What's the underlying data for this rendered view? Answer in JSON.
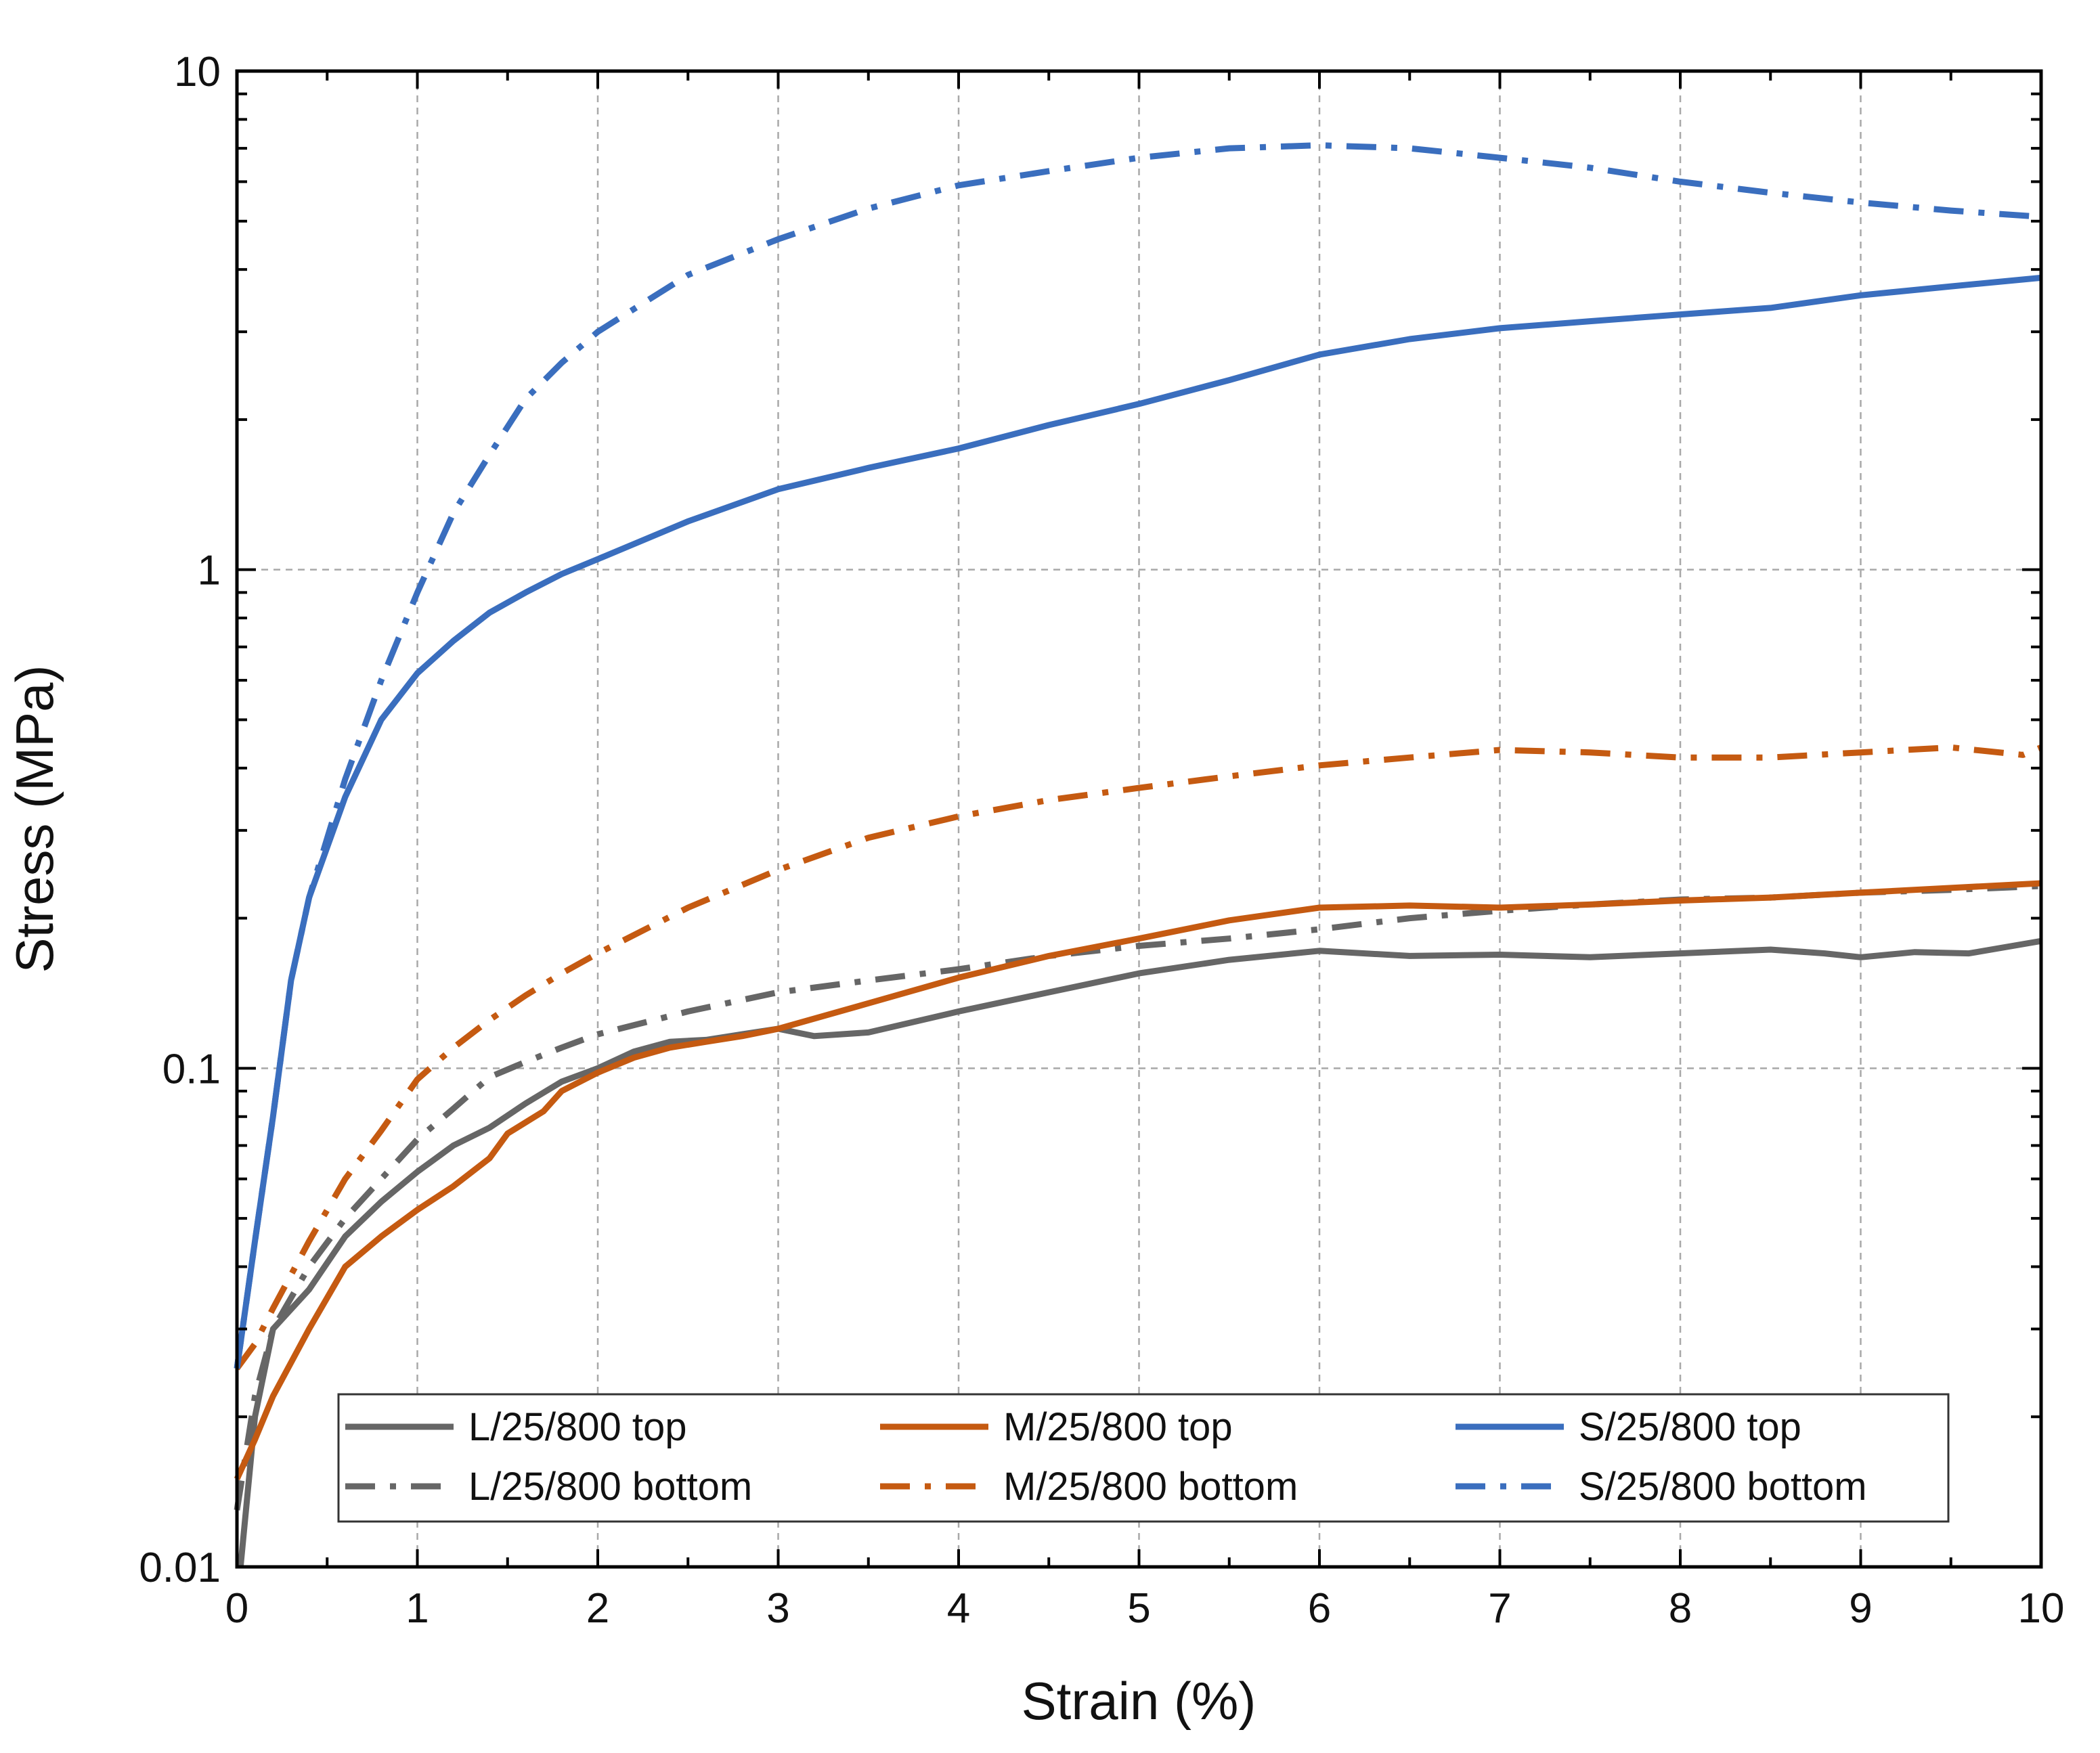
{
  "chart_data": {
    "type": "line",
    "xlabel": "Strain (%)",
    "ylabel": "Stress (MPa)",
    "xlim": [
      0,
      10
    ],
    "ylim": [
      0.01,
      10
    ],
    "y_scale": "log",
    "grid": true,
    "x_ticks": [
      "0",
      "1",
      "2",
      "3",
      "4",
      "5",
      "6",
      "7",
      "8",
      "9",
      "10"
    ],
    "y_ticks": [
      {
        "value": 0.01,
        "label": "0.01"
      },
      {
        "value": 0.1,
        "label": "0.1"
      },
      {
        "value": 1,
        "label": "1"
      },
      {
        "value": 10,
        "label": "10"
      }
    ],
    "legend_position": "bottom",
    "series": [
      {
        "name": "L/25/800 top",
        "color": "#666666",
        "dash": "solid",
        "x": [
          0.02,
          0.1,
          0.2,
          0.4,
          0.6,
          0.8,
          1.0,
          1.2,
          1.4,
          1.6,
          1.8,
          2.0,
          2.2,
          2.4,
          2.6,
          2.8,
          3.0,
          3.2,
          3.5,
          4.0,
          4.5,
          5.0,
          5.5,
          6.0,
          6.5,
          7.0,
          7.5,
          8.0,
          8.5,
          8.8,
          9.0,
          9.3,
          9.6,
          10.0
        ],
        "y": [
          0.01,
          0.02,
          0.03,
          0.036,
          0.046,
          0.054,
          0.062,
          0.07,
          0.076,
          0.085,
          0.094,
          0.1,
          0.108,
          0.113,
          0.114,
          0.117,
          0.12,
          0.116,
          0.118,
          0.13,
          0.142,
          0.155,
          0.165,
          0.172,
          0.168,
          0.169,
          0.167,
          0.17,
          0.173,
          0.17,
          0.167,
          0.171,
          0.17,
          0.18
        ]
      },
      {
        "name": "L/25/800 bottom",
        "color": "#666666",
        "dash": "dashdot",
        "x": [
          0.0,
          0.1,
          0.2,
          0.4,
          0.6,
          0.8,
          1.0,
          1.2,
          1.4,
          1.6,
          1.8,
          2.0,
          2.5,
          3.0,
          3.5,
          4.0,
          4.5,
          5.0,
          5.5,
          6.0,
          6.5,
          7.0,
          7.5,
          8.0,
          8.5,
          9.0,
          9.5,
          10.0
        ],
        "y": [
          0.013,
          0.022,
          0.03,
          0.04,
          0.05,
          0.06,
          0.072,
          0.083,
          0.096,
          0.103,
          0.11,
          0.117,
          0.13,
          0.142,
          0.15,
          0.158,
          0.168,
          0.176,
          0.182,
          0.19,
          0.2,
          0.207,
          0.213,
          0.218,
          0.22,
          0.225,
          0.228,
          0.232
        ]
      },
      {
        "name": "M/25/800 top",
        "color": "#C55A11",
        "dash": "solid",
        "x": [
          0.0,
          0.1,
          0.2,
          0.4,
          0.6,
          0.8,
          1.0,
          1.2,
          1.4,
          1.5,
          1.7,
          1.8,
          2.0,
          2.2,
          2.4,
          2.6,
          2.8,
          3.0,
          3.5,
          4.0,
          4.5,
          5.0,
          5.5,
          6.0,
          6.5,
          7.0,
          7.5,
          8.0,
          8.5,
          9.0,
          9.5,
          10.0
        ],
        "y": [
          0.015,
          0.018,
          0.022,
          0.03,
          0.04,
          0.046,
          0.052,
          0.058,
          0.066,
          0.074,
          0.082,
          0.09,
          0.098,
          0.105,
          0.11,
          0.113,
          0.116,
          0.12,
          0.135,
          0.152,
          0.168,
          0.182,
          0.198,
          0.21,
          0.212,
          0.21,
          0.213,
          0.217,
          0.22,
          0.225,
          0.23,
          0.235
        ]
      },
      {
        "name": "M/25/800 bottom",
        "color": "#C55A11",
        "dash": "dashdot",
        "x": [
          0.0,
          0.1,
          0.2,
          0.4,
          0.6,
          0.8,
          1.0,
          1.2,
          1.4,
          1.6,
          1.8,
          2.0,
          2.5,
          3.0,
          3.5,
          4.0,
          4.5,
          5.0,
          5.5,
          6.0,
          6.5,
          7.0,
          7.5,
          8.0,
          8.5,
          9.0,
          9.5,
          9.9,
          10.0
        ],
        "y": [
          0.025,
          0.028,
          0.033,
          0.045,
          0.06,
          0.075,
          0.095,
          0.11,
          0.125,
          0.14,
          0.155,
          0.17,
          0.21,
          0.25,
          0.29,
          0.32,
          0.345,
          0.365,
          0.385,
          0.405,
          0.42,
          0.435,
          0.43,
          0.42,
          0.42,
          0.43,
          0.44,
          0.425,
          0.44
        ]
      },
      {
        "name": "S/25/800 top",
        "color": "#3A6EBE",
        "dash": "solid",
        "x": [
          0.0,
          0.1,
          0.2,
          0.3,
          0.4,
          0.6,
          0.8,
          1.0,
          1.2,
          1.4,
          1.6,
          1.8,
          2.0,
          2.5,
          3.0,
          3.5,
          4.0,
          4.5,
          5.0,
          5.5,
          6.0,
          6.5,
          7.0,
          7.5,
          8.0,
          8.5,
          9.0,
          9.5,
          10.0
        ],
        "y": [
          0.025,
          0.045,
          0.08,
          0.15,
          0.22,
          0.35,
          0.5,
          0.62,
          0.72,
          0.82,
          0.9,
          0.98,
          1.05,
          1.25,
          1.45,
          1.6,
          1.75,
          1.95,
          2.15,
          2.4,
          2.7,
          2.9,
          3.05,
          3.15,
          3.25,
          3.35,
          3.55,
          3.7,
          3.85
        ]
      },
      {
        "name": "S/25/800 bottom",
        "color": "#3A6EBE",
        "dash": "dashdot",
        "x": [
          0.0,
          0.1,
          0.2,
          0.3,
          0.4,
          0.6,
          0.8,
          1.0,
          1.2,
          1.4,
          1.6,
          1.8,
          2.0,
          2.5,
          3.0,
          3.5,
          4.0,
          4.5,
          5.0,
          5.5,
          6.0,
          6.5,
          7.0,
          7.5,
          8.0,
          8.5,
          9.0,
          9.5,
          10.0
        ],
        "y": [
          0.025,
          0.045,
          0.08,
          0.15,
          0.22,
          0.38,
          0.6,
          0.9,
          1.3,
          1.7,
          2.2,
          2.6,
          3.0,
          3.9,
          4.6,
          5.3,
          5.9,
          6.3,
          6.7,
          7.0,
          7.1,
          7.0,
          6.7,
          6.4,
          6.0,
          5.7,
          5.45,
          5.25,
          5.1
        ]
      }
    ]
  }
}
